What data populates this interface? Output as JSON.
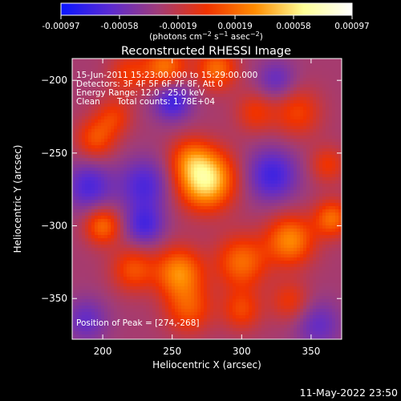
{
  "chart_data": {
    "type": "heatmap",
    "title": "Reconstructed RHESSI Image",
    "xlabel": "Heliocentric X (arcsec)",
    "ylabel": "Heliocentric Y (arcsec)",
    "xlim": [
      178,
      372
    ],
    "ylim": [
      -378,
      -185
    ],
    "x_ticks": [
      200,
      250,
      300,
      350
    ],
    "y_ticks": [
      -200,
      -250,
      -300,
      -350
    ],
    "colorbar": {
      "range": [
        -0.00097,
        0.00097
      ],
      "tick_labels": [
        "-0.00097",
        "-0.00058",
        "-0.00019",
        "0.00019",
        "0.00058",
        "0.00097"
      ],
      "tick_values": [
        -0.00097,
        -0.00058,
        -0.00019,
        0.00019,
        0.00058,
        0.00097
      ],
      "colormap": [
        "#0a16ff",
        "#5a2ad2",
        "#a03c78",
        "#f03200",
        "#ff8c00",
        "#ffff96",
        "#ffffff"
      ]
    },
    "annotations": {
      "time_range": "15-Jun-2011 15:23:00.000 to 15:29:00.000",
      "detectors": "Detectors: 3F 4F 5F 6F 7F 8F, Att 0",
      "energy_range": "Energy Range: 12.0 - 25.0 keV",
      "method": "Clean",
      "total_counts": "Total counts: 1.78E+04",
      "peak_text": "Position of Peak = [274,-268]"
    },
    "sources": [
      {
        "x": 274,
        "y": -268,
        "amplitude": 0.00095,
        "sigma": 14
      },
      {
        "x": 262,
        "y": -253,
        "amplitude": 0.0003,
        "sigma": 10
      },
      {
        "x": 245,
        "y": -192,
        "amplitude": 0.00055,
        "sigma": 11
      },
      {
        "x": 282,
        "y": -192,
        "amplitude": 0.0005,
        "sigma": 10
      },
      {
        "x": 218,
        "y": -195,
        "amplitude": 0.0003,
        "sigma": 10
      },
      {
        "x": 195,
        "y": -240,
        "amplitude": 0.0004,
        "sigma": 10
      },
      {
        "x": 208,
        "y": -225,
        "amplitude": 0.0003,
        "sigma": 9
      },
      {
        "x": 310,
        "y": -222,
        "amplitude": 0.0003,
        "sigma": 10
      },
      {
        "x": 340,
        "y": -222,
        "amplitude": 0.00035,
        "sigma": 12
      },
      {
        "x": 362,
        "y": -258,
        "amplitude": 0.0003,
        "sigma": 9
      },
      {
        "x": 200,
        "y": -300,
        "amplitude": 0.0005,
        "sigma": 9
      },
      {
        "x": 222,
        "y": -330,
        "amplitude": 0.0004,
        "sigma": 11
      },
      {
        "x": 255,
        "y": -332,
        "amplitude": 0.0006,
        "sigma": 12
      },
      {
        "x": 300,
        "y": -325,
        "amplitude": 0.0005,
        "sigma": 13
      },
      {
        "x": 335,
        "y": -310,
        "amplitude": 0.0006,
        "sigma": 12
      },
      {
        "x": 365,
        "y": -295,
        "amplitude": 0.0005,
        "sigma": 9
      },
      {
        "x": 262,
        "y": -357,
        "amplitude": 0.0004,
        "sigma": 12
      },
      {
        "x": 300,
        "y": -358,
        "amplitude": 0.00035,
        "sigma": 10
      },
      {
        "x": 335,
        "y": -352,
        "amplitude": 0.0003,
        "sigma": 10
      },
      {
        "x": 250,
        "y": -213,
        "amplitude": -0.0005,
        "sigma": 10
      },
      {
        "x": 230,
        "y": -272,
        "amplitude": -0.0004,
        "sigma": 13
      },
      {
        "x": 322,
        "y": -265,
        "amplitude": -0.00045,
        "sigma": 13
      },
      {
        "x": 190,
        "y": -273,
        "amplitude": -0.0004,
        "sigma": 12
      },
      {
        "x": 230,
        "y": -300,
        "amplitude": -0.0004,
        "sigma": 10
      },
      {
        "x": 355,
        "y": -368,
        "amplitude": -0.0003,
        "sigma": 12
      },
      {
        "x": 188,
        "y": -365,
        "amplitude": -0.0003,
        "sigma": 11
      },
      {
        "x": 325,
        "y": -200,
        "amplitude": -0.0003,
        "sigma": 10
      }
    ],
    "background": -0.0003,
    "grid": false
  },
  "footer": {
    "date_stamp": "11-May-2022 23:50"
  }
}
